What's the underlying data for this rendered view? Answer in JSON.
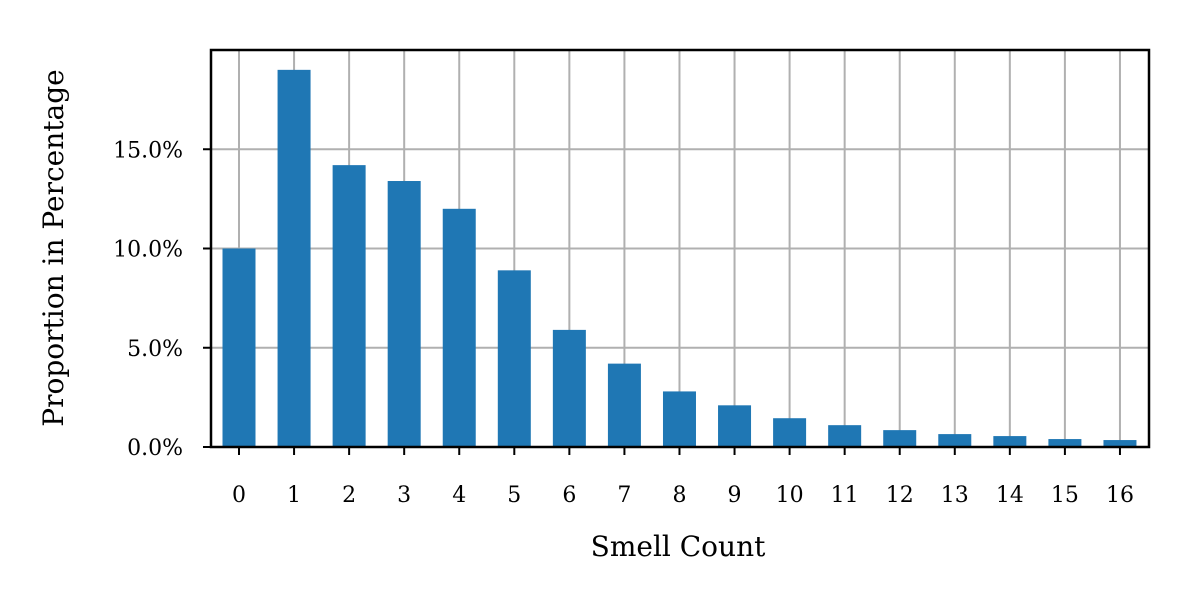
{
  "chart_data": {
    "type": "bar",
    "title": "",
    "xlabel": "Smell Count",
    "ylabel": "Proportion in Percentage",
    "categories": [
      "0",
      "1",
      "2",
      "3",
      "4",
      "5",
      "6",
      "7",
      "8",
      "9",
      "10",
      "11",
      "12",
      "13",
      "14",
      "15",
      "16"
    ],
    "values": [
      10.0,
      19.0,
      14.2,
      13.4,
      12.0,
      8.9,
      5.9,
      4.2,
      2.8,
      2.1,
      1.45,
      1.1,
      0.85,
      0.65,
      0.55,
      0.4,
      0.35
    ],
    "ylim": [
      0,
      20.0
    ],
    "yticks": [
      0,
      5,
      10,
      15
    ],
    "ytick_labels": [
      "0.0%",
      "5.0%",
      "10.0%",
      "15.0%"
    ],
    "grid": true,
    "bar_color": "#1f77b4",
    "grid_color": "#b0b0b0"
  }
}
